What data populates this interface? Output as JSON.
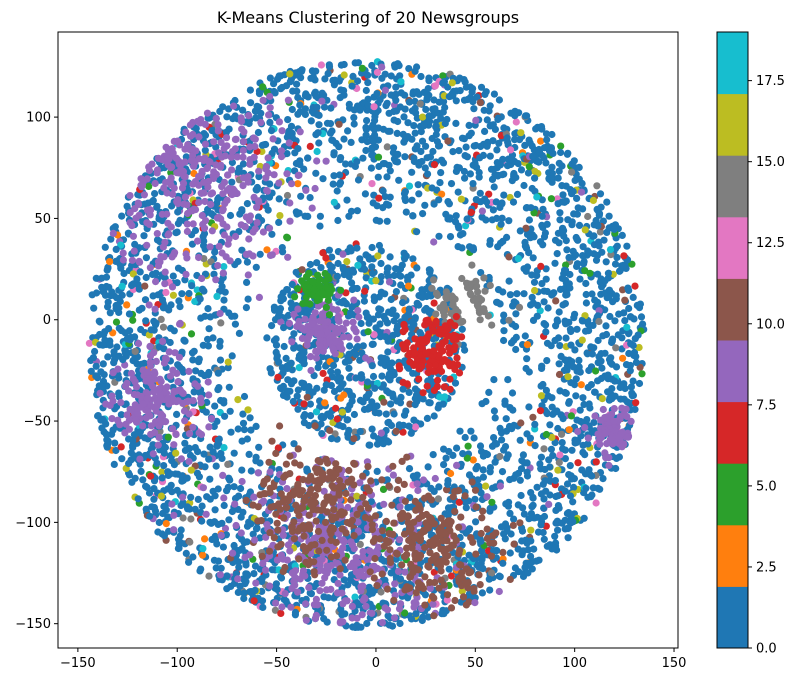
{
  "chart_data": {
    "type": "scatter",
    "title": "K-Means Clustering of 20 Newsgroups",
    "xlabel": "",
    "ylabel": "",
    "xlim": [
      -160,
      152
    ],
    "ylim": [
      -162,
      142
    ],
    "xticks": [
      -150,
      -100,
      -50,
      0,
      50,
      100,
      150
    ],
    "yticks": [
      -150,
      -100,
      -50,
      0,
      50,
      100
    ],
    "xtick_labels": [
      "−150",
      "−100",
      "−50",
      "0",
      "50",
      "100",
      "150"
    ],
    "ytick_labels": [
      "−150",
      "−100",
      "−50",
      "0",
      "50",
      "100"
    ],
    "grid": false,
    "colormap": "tab10",
    "colorbar": {
      "range": [
        0,
        19
      ],
      "ticks": [
        0.0,
        2.5,
        5.0,
        7.5,
        10.0,
        12.5,
        15.0,
        17.5
      ],
      "tick_labels": [
        "0.0",
        "2.5",
        "5.0",
        "7.5",
        "10.0",
        "12.5",
        "15.0",
        "17.5"
      ],
      "colors": [
        "#1f77b4",
        "#ff7f0e",
        "#2ca02c",
        "#d62728",
        "#9467bd",
        "#8c564b",
        "#e377c2",
        "#7f7f7f",
        "#bcbd22",
        "#17becf"
      ]
    },
    "point_cloud": {
      "shape": "annulus",
      "center": [
        -5,
        -12
      ],
      "outer_radius": 140,
      "inner_radius": 52,
      "inner_blob_radius": 50,
      "dominant_cluster": 0,
      "regions": [
        {
          "label": 9,
          "center": [
            -110,
            -40
          ],
          "spread": 18
        },
        {
          "label": 9,
          "center": [
            120,
            -55
          ],
          "spread": 10
        },
        {
          "label": 9,
          "center": [
            -25,
            -5
          ],
          "spread": 12
        },
        {
          "label": 8,
          "center": [
            -90,
            70
          ],
          "spread": 45
        },
        {
          "label": 8,
          "center": [
            -20,
            -120
          ],
          "spread": 45
        },
        {
          "label": 10,
          "center": [
            -30,
            -90
          ],
          "spread": 25
        },
        {
          "label": 10,
          "center": [
            30,
            -110
          ],
          "spread": 25
        },
        {
          "label": 14,
          "center": [
            45,
            10
          ],
          "spread": 12
        },
        {
          "label": 4,
          "center": [
            -30,
            15
          ],
          "spread": 8
        },
        {
          "label": 6,
          "center": [
            30,
            -15
          ],
          "spread": 15
        }
      ]
    }
  }
}
